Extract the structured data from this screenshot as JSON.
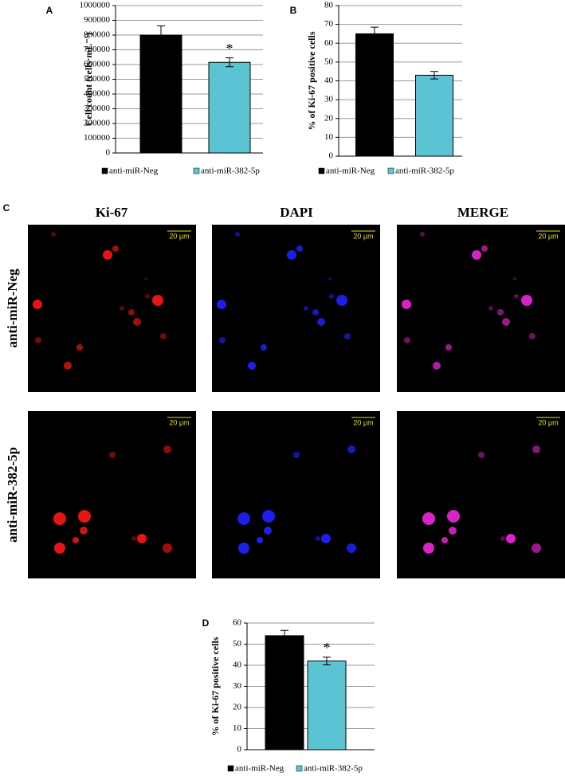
{
  "chart_data": [
    {
      "type": "bar",
      "panel_label": "A",
      "y_label": "Cell count (cells·mL⁻¹)",
      "ylim": [
        0,
        1000000
      ],
      "yticks": [
        0,
        100000,
        200000,
        300000,
        400000,
        500000,
        600000,
        700000,
        800000,
        900000,
        1000000
      ],
      "grid": true,
      "legend": "bottom",
      "series": [
        {
          "name": "anti-miR-Neg",
          "color": "#000000",
          "values": [
            800000
          ],
          "errors": [
            62000
          ]
        },
        {
          "name": "anti-miR-382-5p",
          "color": "#5bc4d4",
          "values": [
            615000
          ],
          "errors": [
            30000
          ],
          "annotation": "*"
        }
      ]
    },
    {
      "type": "bar",
      "panel_label": "B",
      "y_label": "% of Ki-67 positive cells",
      "ylim": [
        0,
        80
      ],
      "yticks": [
        0,
        10,
        20,
        30,
        40,
        50,
        60,
        70,
        80
      ],
      "grid": true,
      "legend": "bottom",
      "series": [
        {
          "name": "anti-miR-Neg",
          "color": "#000000",
          "values": [
            65
          ],
          "errors": [
            3.5
          ]
        },
        {
          "name": "anti-miR-382-5p",
          "color": "#5bc4d4",
          "values": [
            43
          ],
          "errors": [
            2
          ]
        }
      ]
    },
    {
      "type": "bar",
      "panel_label": "D",
      "y_label": "% of Ki-67 positive cells",
      "ylim": [
        0,
        60
      ],
      "yticks": [
        0,
        10,
        20,
        30,
        40,
        50,
        60
      ],
      "grid": true,
      "legend": "bottom",
      "series": [
        {
          "name": "anti-miR-Neg",
          "color": "#000000",
          "values": [
            54
          ],
          "errors": [
            2.5
          ]
        },
        {
          "name": "anti-miR-382-5p",
          "color": "#5bc4d4",
          "values": [
            42
          ],
          "errors": [
            1.8
          ],
          "annotation": "*"
        }
      ]
    }
  ],
  "panel_c": {
    "panel_label": "C",
    "columns": [
      "Ki-67",
      "DAPI",
      "MERGE"
    ],
    "rows": [
      "anti-miR-Neg",
      "anti-miR-382-5p"
    ],
    "scale_bar": "20 μm"
  }
}
